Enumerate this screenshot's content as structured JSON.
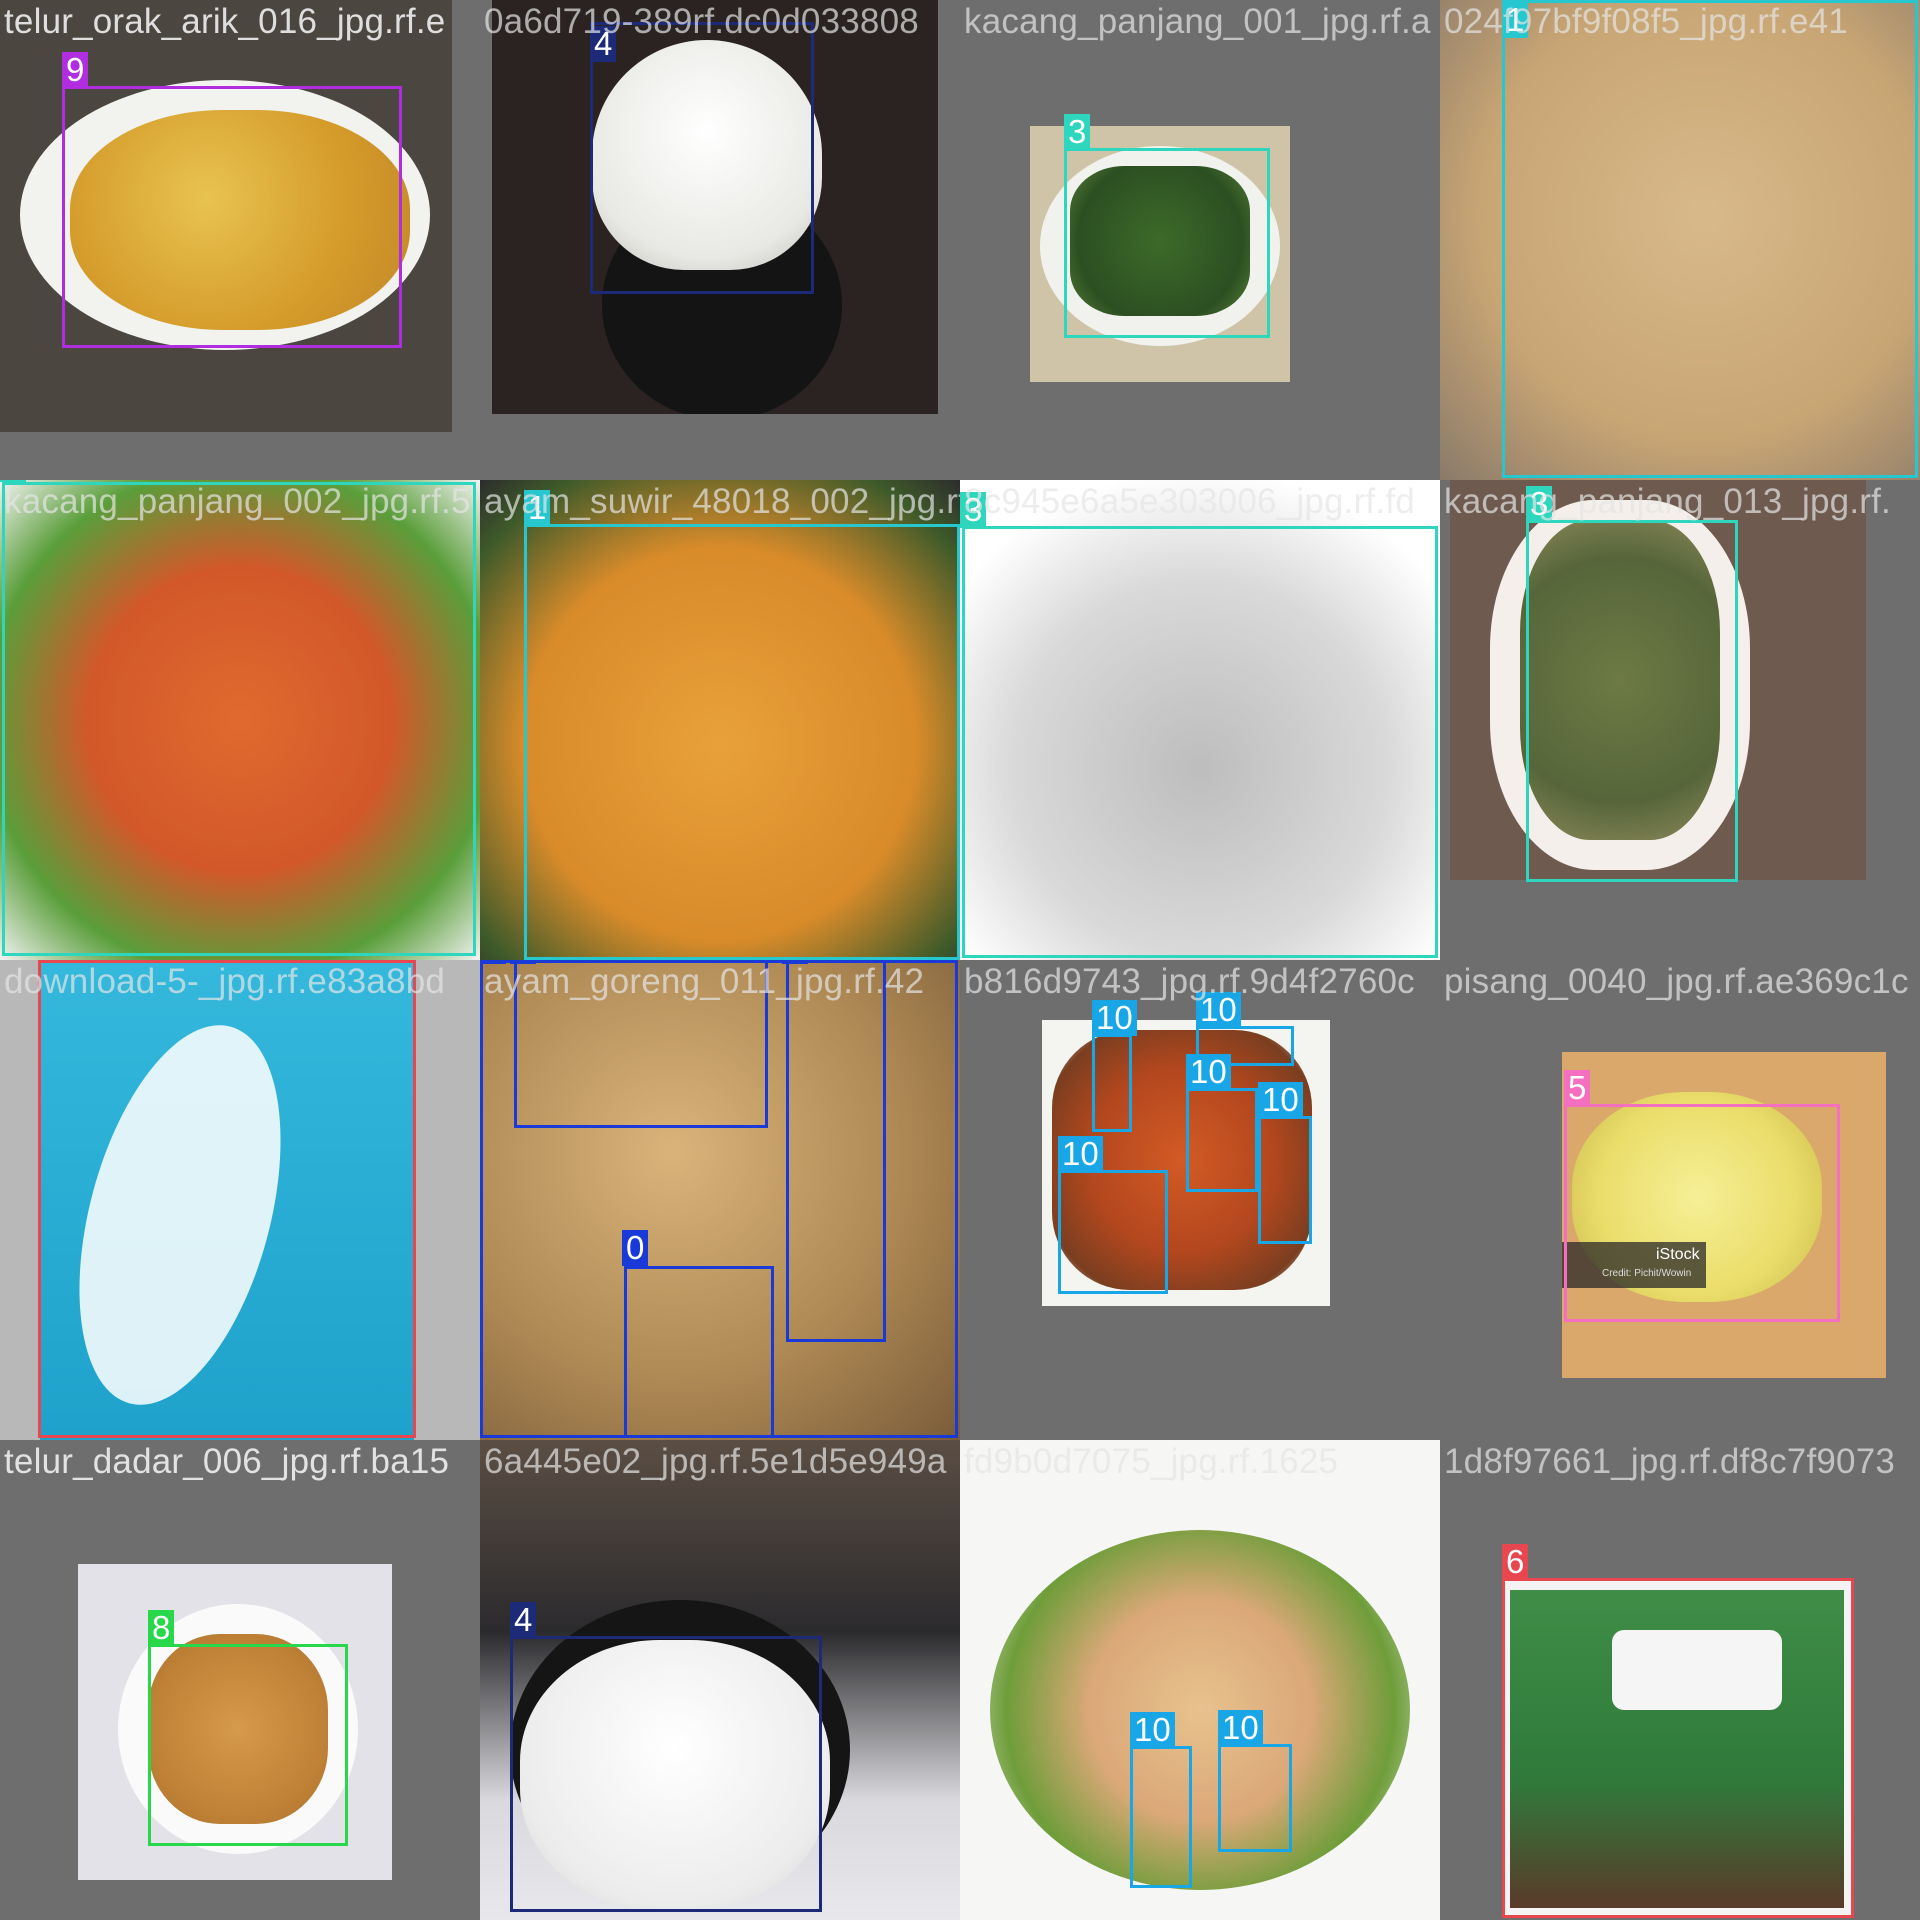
{
  "mosaic": {
    "tiles": [
      {
        "filename": "telur_orak_arik_016_jpg.rf.e",
        "labels": [
          "9"
        ]
      },
      {
        "filename": "0a6d719-389rf.dc0d033808",
        "labels": [
          "4"
        ]
      },
      {
        "filename": "kacang_panjang_001_jpg.rf.a",
        "labels": [
          "3"
        ]
      },
      {
        "filename": "024f97bf9f08f5_jpg.rf.e41",
        "labels": [
          "1"
        ]
      },
      {
        "filename": "kacang_panjang_002_jpg.rf.5",
        "labels": [
          "3"
        ]
      },
      {
        "filename": "ayam_suwir_48018_002_jpg.rf.3c13",
        "labels": [
          "1"
        ]
      },
      {
        "filename": "8c945e6a5e303006_jpg.rf.fd",
        "labels": [
          "3"
        ]
      },
      {
        "filename": "kacang_panjang_013_jpg.rf.",
        "labels": [
          "3"
        ]
      },
      {
        "filename": "download-5-_jpg.rf.e83a8bd",
        "labels": [
          "6"
        ]
      },
      {
        "filename": "ayam_goreng_011_jpg.rf.42",
        "labels": [
          "0",
          "0",
          "0",
          "0"
        ]
      },
      {
        "filename": "b816d9743_jpg.rf.9d4f2760c",
        "labels": [
          "10",
          "10",
          "10",
          "10",
          "10"
        ]
      },
      {
        "filename": "pisang_0040_jpg.rf.ae369c1c",
        "labels": [
          "5"
        ]
      },
      {
        "filename": "telur_dadar_006_jpg.rf.ba15",
        "labels": [
          "8"
        ]
      },
      {
        "filename": "6a445e02_jpg.rf.5e1d5e949a",
        "labels": [
          "4"
        ]
      },
      {
        "filename": "fd9b0d7075_jpg.rf.1625",
        "labels": [
          "10",
          "10"
        ]
      },
      {
        "filename": "1d8f97661_jpg.rf.df8c7f9073",
        "labels": [
          "6"
        ]
      }
    ],
    "watermark_text": "iStock",
    "watermark_sub": "Credit: Pichit/Wowin"
  },
  "colors": {
    "class_0": "#1a3ad8",
    "class_1": "#27c7d0",
    "class_3": "#2fd6be",
    "class_4": "#1c2a78",
    "class_5": "#f46fc0",
    "class_6": "#e8474f",
    "class_8": "#28d84a",
    "class_9": "#b12ee0",
    "class_10": "#18a6e6"
  }
}
